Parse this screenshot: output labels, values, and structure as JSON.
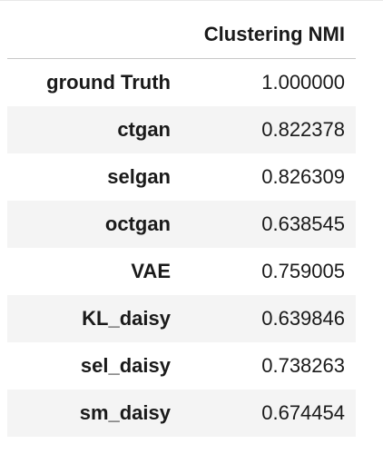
{
  "table": {
    "index_header": "",
    "column_header": "Clustering NMI",
    "rows": [
      {
        "label": "ground Truth",
        "value": "1.000000"
      },
      {
        "label": "ctgan",
        "value": "0.822378"
      },
      {
        "label": "selgan",
        "value": "0.826309"
      },
      {
        "label": "octgan",
        "value": "0.638545"
      },
      {
        "label": "VAE",
        "value": "0.759005"
      },
      {
        "label": "KL_daisy",
        "value": "0.639846"
      },
      {
        "label": "sel_daisy",
        "value": "0.738263"
      },
      {
        "label": "sm_daisy",
        "value": "0.674454"
      }
    ]
  }
}
